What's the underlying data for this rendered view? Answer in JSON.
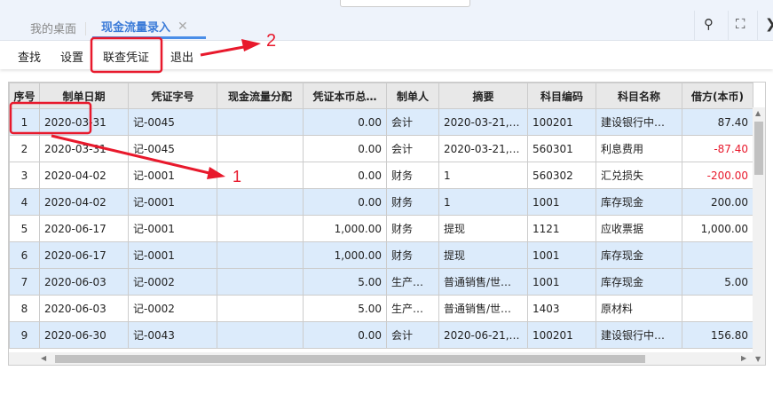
{
  "tabs": [
    {
      "label": "我的桌面",
      "active": false
    },
    {
      "label": "现金流量录入",
      "active": true
    }
  ],
  "tab_close": "✕",
  "toolbar": {
    "find": "查找",
    "settings": "设置",
    "link_voucher": "联查凭证",
    "exit": "退出"
  },
  "table": {
    "columns": [
      "序号",
      "制单日期",
      "凭证字号",
      "现金流量分配",
      "凭证本币总…",
      "制单人",
      "摘要",
      "科目编码",
      "科目名称",
      "借方(本币)"
    ],
    "rows": [
      [
        "1",
        "2020-03-31",
        "记-0045",
        "",
        "0.00",
        "会计",
        "2020-03-21,…",
        "100201",
        "建设银行中…",
        "87.40"
      ],
      [
        "2",
        "2020-03-31",
        "记-0045",
        "",
        "0.00",
        "会计",
        "2020-03-21,…",
        "560301",
        "利息费用",
        "-87.40"
      ],
      [
        "3",
        "2020-04-02",
        "记-0001",
        "",
        "0.00",
        "财务",
        "1",
        "560302",
        "汇兑损失",
        "-200.00"
      ],
      [
        "4",
        "2020-04-02",
        "记-0001",
        "",
        "0.00",
        "财务",
        "1",
        "1001",
        "库存现金",
        "200.00"
      ],
      [
        "5",
        "2020-06-17",
        "记-0001",
        "",
        "1,000.00",
        "财务",
        "提现",
        "1121",
        "应收票据",
        "1,000.00"
      ],
      [
        "6",
        "2020-06-17",
        "记-0001",
        "",
        "1,000.00",
        "财务",
        "提现",
        "1001",
        "库存现金",
        ""
      ],
      [
        "7",
        "2020-06-03",
        "记-0002",
        "",
        "5.00",
        "生产…",
        "普通销售/世…",
        "1001",
        "库存现金",
        "5.00"
      ],
      [
        "8",
        "2020-06-03",
        "记-0002",
        "",
        "5.00",
        "生产…",
        "普通销售/世…",
        "1403",
        "原材料",
        ""
      ],
      [
        "9",
        "2020-06-30",
        "记-0043",
        "",
        "0.00",
        "会计",
        "2020-06-21,…",
        "100201",
        "建设银行中…",
        "156.80"
      ]
    ],
    "row_styles": [
      "blue",
      "white",
      "white",
      "blue",
      "white",
      "blue",
      "blue",
      "white",
      "blue"
    ]
  },
  "annotations": {
    "label1": "1",
    "label2": "2",
    "color": "#e8192c"
  },
  "colors": {
    "accent": "#3b7bd8",
    "row_highlight": "#dcebfb",
    "negative": "#e8192c"
  }
}
